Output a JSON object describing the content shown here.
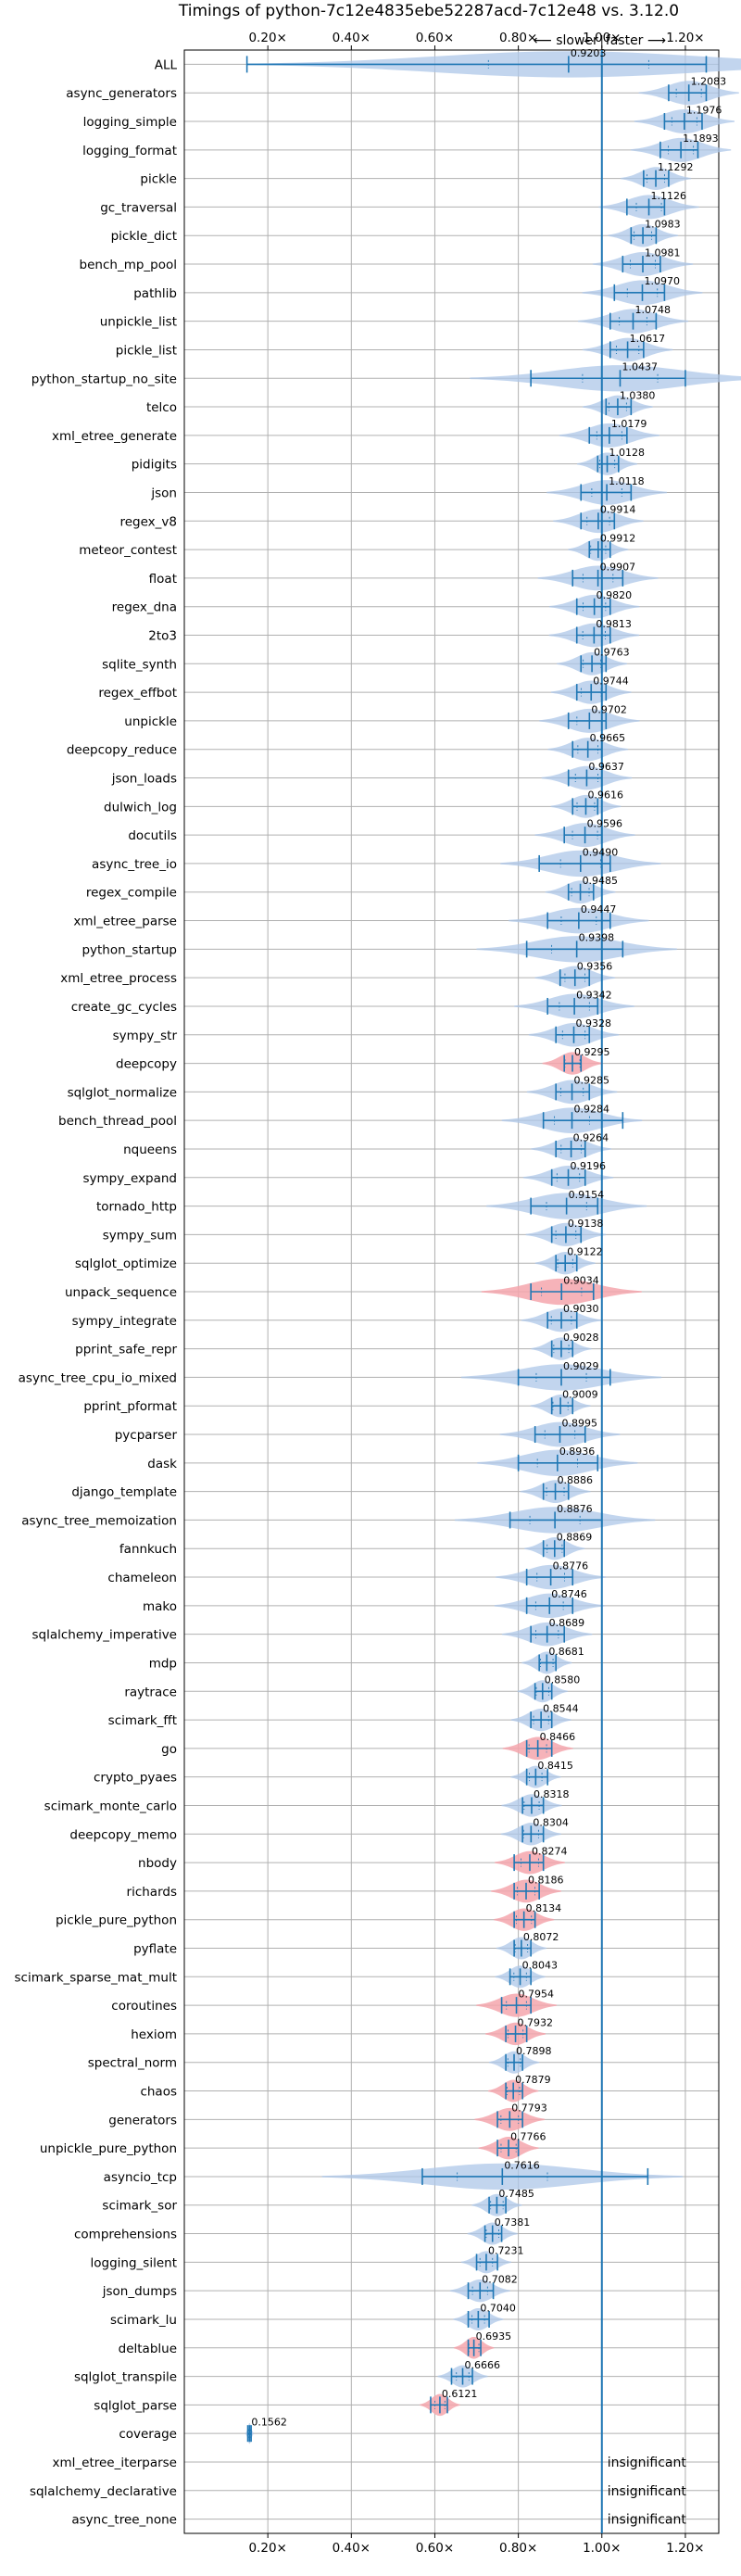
{
  "chart_data": {
    "type": "violin",
    "title": "Timings of python-7c12e4835ebe52287acd-7c12e48 vs. 3.12.0",
    "xlabel_top_left": "⟵ slower",
    "xlabel_top_right": "faster ⟶",
    "x_ticks": [
      "0.20×",
      "0.40×",
      "0.60×",
      "0.80×",
      "1.00×",
      "1.20×"
    ],
    "x_tick_values": [
      0.2,
      0.4,
      0.6,
      0.8,
      1.0,
      1.2
    ],
    "xlim": [
      0.0,
      1.28
    ],
    "reference_line": 1.0,
    "grid": true,
    "insignificant_label": "insignificant",
    "colors": {
      "normal": "#1f77b4",
      "normal_fill": "#aec7e8",
      "regressed_fill": "#f4a6ad"
    },
    "benchmarks": [
      {
        "name": "ALL",
        "label": "0.9203",
        "value": 0.9203,
        "min": 0.15,
        "max": 1.25,
        "spread": 0.32,
        "color": "blue"
      },
      {
        "name": "async_generators",
        "label": "1.2083",
        "value": 1.2083,
        "min": 1.16,
        "max": 1.25,
        "spread": 0.05,
        "color": "blue"
      },
      {
        "name": "logging_simple",
        "label": "1.1976",
        "value": 1.1976,
        "min": 1.15,
        "max": 1.24,
        "spread": 0.05,
        "color": "blue"
      },
      {
        "name": "logging_format",
        "label": "1.1893",
        "value": 1.1893,
        "min": 1.14,
        "max": 1.23,
        "spread": 0.05,
        "color": "blue"
      },
      {
        "name": "pickle",
        "label": "1.1292",
        "value": 1.1292,
        "min": 1.1,
        "max": 1.16,
        "spread": 0.035,
        "color": "blue"
      },
      {
        "name": "gc_traversal",
        "label": "1.1126",
        "value": 1.1126,
        "min": 1.06,
        "max": 1.15,
        "spread": 0.05,
        "color": "blue"
      },
      {
        "name": "pickle_dict",
        "label": "1.0983",
        "value": 1.0983,
        "min": 1.07,
        "max": 1.13,
        "spread": 0.035,
        "color": "blue"
      },
      {
        "name": "bench_mp_pool",
        "label": "1.0981",
        "value": 1.0981,
        "min": 1.05,
        "max": 1.14,
        "spread": 0.05,
        "color": "blue"
      },
      {
        "name": "pathlib",
        "label": "1.0970",
        "value": 1.097,
        "min": 1.03,
        "max": 1.15,
        "spread": 0.06,
        "color": "blue"
      },
      {
        "name": "unpickle_list",
        "label": "1.0748",
        "value": 1.0748,
        "min": 1.02,
        "max": 1.13,
        "spread": 0.055,
        "color": "blue"
      },
      {
        "name": "pickle_list",
        "label": "1.0617",
        "value": 1.0617,
        "min": 1.02,
        "max": 1.1,
        "spread": 0.045,
        "color": "blue"
      },
      {
        "name": "python_startup_no_site",
        "label": "1.0437",
        "value": 1.0437,
        "min": 0.83,
        "max": 1.2,
        "spread": 0.15,
        "color": "blue"
      },
      {
        "name": "telco",
        "label": "1.0380",
        "value": 1.038,
        "min": 1.01,
        "max": 1.07,
        "spread": 0.035,
        "color": "blue"
      },
      {
        "name": "xml_etree_generate",
        "label": "1.0179",
        "value": 1.0179,
        "min": 0.97,
        "max": 1.06,
        "spread": 0.05,
        "color": "blue"
      },
      {
        "name": "pidigits",
        "label": "1.0128",
        "value": 1.0128,
        "min": 0.99,
        "max": 1.04,
        "spread": 0.03,
        "color": "blue"
      },
      {
        "name": "json",
        "label": "1.0118",
        "value": 1.0118,
        "min": 0.95,
        "max": 1.07,
        "spread": 0.06,
        "color": "blue"
      },
      {
        "name": "regex_v8",
        "label": "0.9914",
        "value": 0.9914,
        "min": 0.95,
        "max": 1.03,
        "spread": 0.045,
        "color": "blue"
      },
      {
        "name": "meteor_contest",
        "label": "0.9912",
        "value": 0.9912,
        "min": 0.97,
        "max": 1.02,
        "spread": 0.03,
        "color": "blue"
      },
      {
        "name": "float",
        "label": "0.9907",
        "value": 0.9907,
        "min": 0.93,
        "max": 1.05,
        "spread": 0.06,
        "color": "blue"
      },
      {
        "name": "regex_dna",
        "label": "0.9820",
        "value": 0.982,
        "min": 0.94,
        "max": 1.02,
        "spread": 0.045,
        "color": "blue"
      },
      {
        "name": "2to3",
        "label": "0.9813",
        "value": 0.9813,
        "min": 0.94,
        "max": 1.02,
        "spread": 0.045,
        "color": "blue"
      },
      {
        "name": "sqlite_synth",
        "label": "0.9763",
        "value": 0.9763,
        "min": 0.95,
        "max": 1.01,
        "spread": 0.035,
        "color": "blue"
      },
      {
        "name": "regex_effbot",
        "label": "0.9744",
        "value": 0.9744,
        "min": 0.94,
        "max": 1.01,
        "spread": 0.04,
        "color": "blue"
      },
      {
        "name": "unpickle",
        "label": "0.9702",
        "value": 0.9702,
        "min": 0.92,
        "max": 1.01,
        "spread": 0.05,
        "color": "blue"
      },
      {
        "name": "deepcopy_reduce",
        "label": "0.9665",
        "value": 0.9665,
        "min": 0.93,
        "max": 1.0,
        "spread": 0.04,
        "color": "blue"
      },
      {
        "name": "json_loads",
        "label": "0.9637",
        "value": 0.9637,
        "min": 0.92,
        "max": 1.0,
        "spread": 0.045,
        "color": "blue"
      },
      {
        "name": "dulwich_log",
        "label": "0.9616",
        "value": 0.9616,
        "min": 0.93,
        "max": 0.99,
        "spread": 0.035,
        "color": "blue"
      },
      {
        "name": "docutils",
        "label": "0.9596",
        "value": 0.9596,
        "min": 0.91,
        "max": 1.0,
        "spread": 0.05,
        "color": "blue"
      },
      {
        "name": "async_tree_io",
        "label": "0.9490",
        "value": 0.949,
        "min": 0.85,
        "max": 1.02,
        "spread": 0.08,
        "color": "blue"
      },
      {
        "name": "regex_compile",
        "label": "0.9485",
        "value": 0.9485,
        "min": 0.92,
        "max": 0.98,
        "spread": 0.035,
        "color": "blue"
      },
      {
        "name": "xml_etree_parse",
        "label": "0.9447",
        "value": 0.9447,
        "min": 0.87,
        "max": 1.02,
        "spread": 0.07,
        "color": "blue"
      },
      {
        "name": "python_startup",
        "label": "0.9398",
        "value": 0.9398,
        "min": 0.82,
        "max": 1.05,
        "spread": 0.1,
        "color": "blue"
      },
      {
        "name": "xml_etree_process",
        "label": "0.9356",
        "value": 0.9356,
        "min": 0.9,
        "max": 0.97,
        "spread": 0.04,
        "color": "blue"
      },
      {
        "name": "create_gc_cycles",
        "label": "0.9342",
        "value": 0.9342,
        "min": 0.87,
        "max": 0.99,
        "spread": 0.06,
        "color": "blue"
      },
      {
        "name": "sympy_str",
        "label": "0.9328",
        "value": 0.9328,
        "min": 0.89,
        "max": 0.97,
        "spread": 0.045,
        "color": "blue"
      },
      {
        "name": "deepcopy",
        "label": "0.9295",
        "value": 0.9295,
        "min": 0.91,
        "max": 0.95,
        "spread": 0.03,
        "color": "red"
      },
      {
        "name": "sqlglot_normalize",
        "label": "0.9285",
        "value": 0.9285,
        "min": 0.89,
        "max": 0.97,
        "spread": 0.045,
        "color": "blue"
      },
      {
        "name": "bench_thread_pool",
        "label": "0.9284",
        "value": 0.9284,
        "min": 0.86,
        "max": 1.05,
        "spread": 0.07,
        "color": "blue"
      },
      {
        "name": "nqueens",
        "label": "0.9264",
        "value": 0.9264,
        "min": 0.89,
        "max": 0.96,
        "spread": 0.04,
        "color": "blue"
      },
      {
        "name": "sympy_expand",
        "label": "0.9196",
        "value": 0.9196,
        "min": 0.88,
        "max": 0.96,
        "spread": 0.045,
        "color": "blue"
      },
      {
        "name": "tornado_http",
        "label": "0.9154",
        "value": 0.9154,
        "min": 0.83,
        "max": 0.99,
        "spread": 0.08,
        "color": "blue"
      },
      {
        "name": "sympy_sum",
        "label": "0.9138",
        "value": 0.9138,
        "min": 0.88,
        "max": 0.95,
        "spread": 0.04,
        "color": "blue"
      },
      {
        "name": "sqlglot_optimize",
        "label": "0.9122",
        "value": 0.9122,
        "min": 0.89,
        "max": 0.94,
        "spread": 0.03,
        "color": "blue"
      },
      {
        "name": "unpack_sequence",
        "label": "0.9034",
        "value": 0.9034,
        "min": 0.83,
        "max": 0.98,
        "spread": 0.08,
        "color": "red"
      },
      {
        "name": "sympy_integrate",
        "label": "0.9030",
        "value": 0.903,
        "min": 0.87,
        "max": 0.94,
        "spread": 0.04,
        "color": "blue"
      },
      {
        "name": "pprint_safe_repr",
        "label": "0.9028",
        "value": 0.9028,
        "min": 0.88,
        "max": 0.93,
        "spread": 0.03,
        "color": "blue"
      },
      {
        "name": "async_tree_cpu_io_mixed",
        "label": "0.9029",
        "value": 0.9029,
        "min": 0.8,
        "max": 1.02,
        "spread": 0.1,
        "color": "blue"
      },
      {
        "name": "pprint_pformat",
        "label": "0.9009",
        "value": 0.9009,
        "min": 0.88,
        "max": 0.93,
        "spread": 0.03,
        "color": "blue"
      },
      {
        "name": "pycparser",
        "label": "0.8995",
        "value": 0.8995,
        "min": 0.84,
        "max": 0.96,
        "spread": 0.06,
        "color": "blue"
      },
      {
        "name": "dask",
        "label": "0.8936",
        "value": 0.8936,
        "min": 0.8,
        "max": 0.99,
        "spread": 0.08,
        "color": "blue"
      },
      {
        "name": "django_template",
        "label": "0.8886",
        "value": 0.8886,
        "min": 0.86,
        "max": 0.92,
        "spread": 0.035,
        "color": "blue"
      },
      {
        "name": "async_tree_memoization",
        "label": "0.8876",
        "value": 0.8876,
        "min": 0.78,
        "max": 1.0,
        "spread": 0.1,
        "color": "blue"
      },
      {
        "name": "fannkuch",
        "label": "0.8869",
        "value": 0.8869,
        "min": 0.86,
        "max": 0.91,
        "spread": 0.03,
        "color": "blue"
      },
      {
        "name": "chameleon",
        "label": "0.8776",
        "value": 0.8776,
        "min": 0.82,
        "max": 0.93,
        "spread": 0.055,
        "color": "blue"
      },
      {
        "name": "mako",
        "label": "0.8746",
        "value": 0.8746,
        "min": 0.82,
        "max": 0.93,
        "spread": 0.055,
        "color": "blue"
      },
      {
        "name": "sqlalchemy_imperative",
        "label": "0.8689",
        "value": 0.8689,
        "min": 0.83,
        "max": 0.91,
        "spread": 0.045,
        "color": "blue"
      },
      {
        "name": "mdp",
        "label": "0.8681",
        "value": 0.8681,
        "min": 0.85,
        "max": 0.89,
        "spread": 0.025,
        "color": "blue"
      },
      {
        "name": "raytrace",
        "label": "0.8580",
        "value": 0.858,
        "min": 0.84,
        "max": 0.88,
        "spread": 0.025,
        "color": "blue"
      },
      {
        "name": "scimark_fft",
        "label": "0.8544",
        "value": 0.8544,
        "min": 0.83,
        "max": 0.88,
        "spread": 0.03,
        "color": "blue"
      },
      {
        "name": "go",
        "label": "0.8466",
        "value": 0.8466,
        "min": 0.82,
        "max": 0.88,
        "spread": 0.035,
        "color": "red"
      },
      {
        "name": "crypto_pyaes",
        "label": "0.8415",
        "value": 0.8415,
        "min": 0.82,
        "max": 0.87,
        "spread": 0.025,
        "color": "blue"
      },
      {
        "name": "scimark_monte_carlo",
        "label": "0.8318",
        "value": 0.8318,
        "min": 0.81,
        "max": 0.86,
        "spread": 0.03,
        "color": "blue"
      },
      {
        "name": "deepcopy_memo",
        "label": "0.8304",
        "value": 0.8304,
        "min": 0.81,
        "max": 0.86,
        "spread": 0.03,
        "color": "blue"
      },
      {
        "name": "nbody",
        "label": "0.8274",
        "value": 0.8274,
        "min": 0.79,
        "max": 0.86,
        "spread": 0.035,
        "color": "red"
      },
      {
        "name": "richards",
        "label": "0.8186",
        "value": 0.8186,
        "min": 0.79,
        "max": 0.85,
        "spread": 0.035,
        "color": "red"
      },
      {
        "name": "pickle_pure_python",
        "label": "0.8134",
        "value": 0.8134,
        "min": 0.79,
        "max": 0.84,
        "spread": 0.03,
        "color": "red"
      },
      {
        "name": "pyflate",
        "label": "0.8072",
        "value": 0.8072,
        "min": 0.79,
        "max": 0.83,
        "spread": 0.025,
        "color": "blue"
      },
      {
        "name": "scimark_sparse_mat_mult",
        "label": "0.8043",
        "value": 0.8043,
        "min": 0.78,
        "max": 0.83,
        "spread": 0.025,
        "color": "blue"
      },
      {
        "name": "coroutines",
        "label": "0.7954",
        "value": 0.7954,
        "min": 0.76,
        "max": 0.83,
        "spread": 0.04,
        "color": "red"
      },
      {
        "name": "hexiom",
        "label": "0.7932",
        "value": 0.7932,
        "min": 0.77,
        "max": 0.82,
        "spread": 0.03,
        "color": "red"
      },
      {
        "name": "spectral_norm",
        "label": "0.7898",
        "value": 0.7898,
        "min": 0.77,
        "max": 0.81,
        "spread": 0.025,
        "color": "blue"
      },
      {
        "name": "chaos",
        "label": "0.7879",
        "value": 0.7879,
        "min": 0.77,
        "max": 0.81,
        "spread": 0.025,
        "color": "red"
      },
      {
        "name": "generators",
        "label": "0.7793",
        "value": 0.7793,
        "min": 0.75,
        "max": 0.81,
        "spread": 0.035,
        "color": "red"
      },
      {
        "name": "unpickle_pure_python",
        "label": "0.7766",
        "value": 0.7766,
        "min": 0.75,
        "max": 0.8,
        "spread": 0.03,
        "color": "red"
      },
      {
        "name": "asyncio_tcp",
        "label": "0.7616",
        "value": 0.7616,
        "min": 0.57,
        "max": 1.11,
        "spread": 0.18,
        "color": "blue"
      },
      {
        "name": "scimark_sor",
        "label": "0.7485",
        "value": 0.7485,
        "min": 0.73,
        "max": 0.77,
        "spread": 0.025,
        "color": "blue"
      },
      {
        "name": "comprehensions",
        "label": "0.7381",
        "value": 0.7381,
        "min": 0.72,
        "max": 0.76,
        "spread": 0.025,
        "color": "blue"
      },
      {
        "name": "logging_silent",
        "label": "0.7231",
        "value": 0.7231,
        "min": 0.7,
        "max": 0.75,
        "spread": 0.025,
        "color": "blue"
      },
      {
        "name": "json_dumps",
        "label": "0.7082",
        "value": 0.7082,
        "min": 0.68,
        "max": 0.74,
        "spread": 0.03,
        "color": "blue"
      },
      {
        "name": "scimark_lu",
        "label": "0.7040",
        "value": 0.704,
        "min": 0.68,
        "max": 0.73,
        "spread": 0.025,
        "color": "blue"
      },
      {
        "name": "deltablue",
        "label": "0.6935",
        "value": 0.6935,
        "min": 0.68,
        "max": 0.71,
        "spread": 0.02,
        "color": "red"
      },
      {
        "name": "sqlglot_transpile",
        "label": "0.6666",
        "value": 0.6666,
        "min": 0.64,
        "max": 0.69,
        "spread": 0.025,
        "color": "blue"
      },
      {
        "name": "sqlglot_parse",
        "label": "0.6121",
        "value": 0.6121,
        "min": 0.59,
        "max": 0.63,
        "spread": 0.02,
        "color": "red"
      },
      {
        "name": "coverage",
        "label": "0.1562",
        "value": 0.1562,
        "min": 0.152,
        "max": 0.16,
        "spread": 0.004,
        "color": "blue"
      },
      {
        "name": "xml_etree_iterparse",
        "label": "",
        "value": null,
        "insignificant": true
      },
      {
        "name": "sqlalchemy_declarative",
        "label": "",
        "value": null,
        "insignificant": true
      },
      {
        "name": "async_tree_none",
        "label": "",
        "value": null,
        "insignificant": true
      }
    ]
  }
}
